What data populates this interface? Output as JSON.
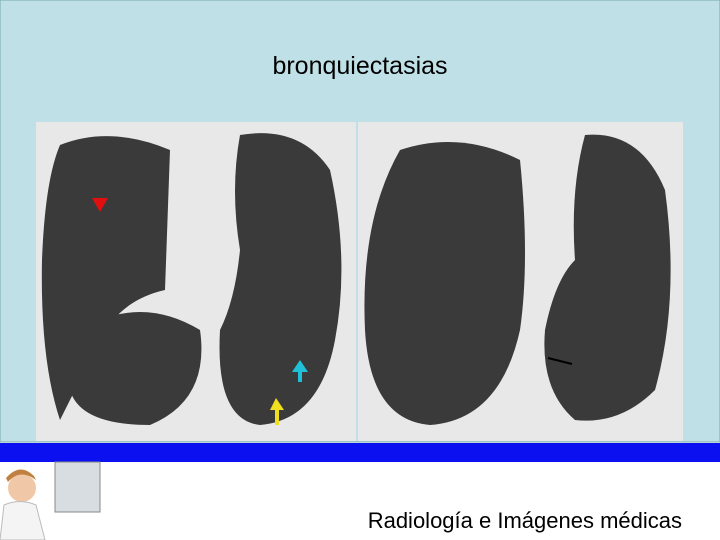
{
  "title": "bronquiectasias",
  "footer": "Radiología e Imágenes médicas"
}
